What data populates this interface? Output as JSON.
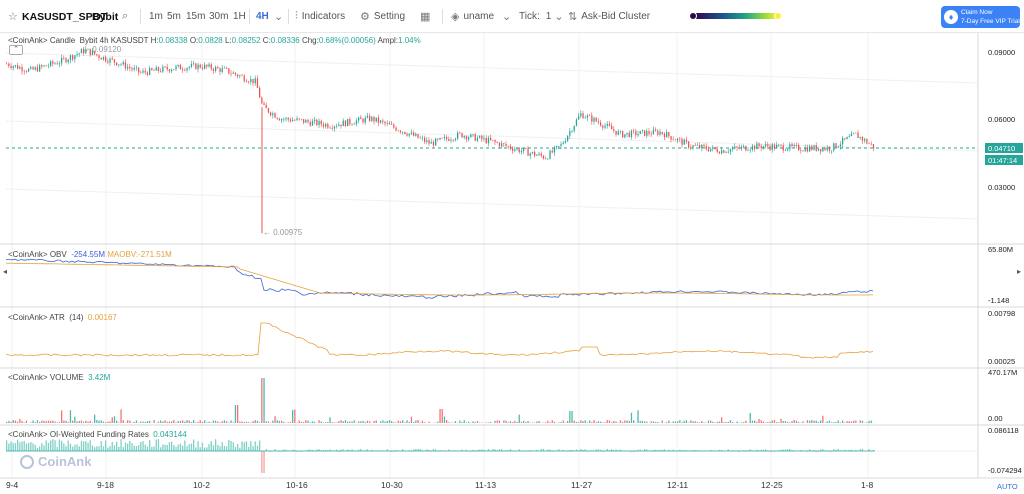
{
  "toolbar": {
    "symbol": "KASUSDT_SPOT",
    "exchange": "Bybit",
    "timeframes": [
      "1m",
      "5m",
      "15m",
      "30m",
      "1H",
      "4H"
    ],
    "active_timeframe": "4H",
    "indicators_label": "Indicators",
    "setting_label": "Setting",
    "uname_label": "uname",
    "tick_label": "Tick:",
    "tick_value": "1",
    "cluster_label": "Ask-Bid Cluster",
    "claim_line1": "Claim Now",
    "claim_line2": "7-Day Free VIP Trial"
  },
  "candle_panel": {
    "source": "<CoinAnk>",
    "type_label": "Candle",
    "info": "Bybit 4h KASUSDT",
    "h_label": "H:",
    "h": "0.08338",
    "o_label": "O:",
    "o": "0.0828",
    "l_label": "L:",
    "l": "0.08252",
    "c_label": "C:",
    "c": "0.08336",
    "chg_label": "Chg:",
    "chg": "0.68%(0.00056)",
    "ampl_label": "Ampl:",
    "ampl": "1.04%",
    "high_marker": "0.09120",
    "low_marker": "0.00975",
    "y_ticks": [
      "0.09000",
      "0.06000",
      "0.03000"
    ],
    "last_price": "0.04710",
    "countdown": "01:47:14"
  },
  "obv_panel": {
    "source": "<CoinAnk>",
    "name": "OBV",
    "value": "-254.55M",
    "ma_label": "MAOBV:",
    "ma_value": "-271.51M",
    "y_top": "65.80M",
    "y_bottom": "-1.148"
  },
  "atr_panel": {
    "source": "<CoinAnk>",
    "name": "ATR",
    "param": "(14)",
    "value": "0.00167",
    "y_top": "0.00798",
    "y_bottom": "0.00025"
  },
  "volume_panel": {
    "source": "<CoinAnk>",
    "name": "VOLUME",
    "value": "3.42M",
    "y_top": "470.17M",
    "y_bottom": "0.00"
  },
  "funding_panel": {
    "source": "<CoinAnk>",
    "name": "OI-Weighted Funding Rates",
    "value": "0.043144",
    "y_top": "0.086118",
    "y_bottom": "-0.074294"
  },
  "x_axis": {
    "dates": [
      "9-4",
      "9-18",
      "10-2",
      "10-16",
      "10-30",
      "11-13",
      "11-27",
      "12-11",
      "12-25",
      "1-8"
    ],
    "auto_label": "AUTO"
  },
  "watermark": "CoinAnk",
  "colors": {
    "up": "#26a69a",
    "down": "#ef5350",
    "obv": "#3b63d6",
    "maobv": "#e6a23c",
    "atr": "#e6a23c",
    "accent": "#3b82f6"
  },
  "chart_data": {
    "type": "candlestick",
    "x_dates": [
      "9-4",
      "9-18",
      "10-2",
      "10-16",
      "10-30",
      "11-13",
      "11-27",
      "12-11",
      "12-25",
      "1-8"
    ],
    "price_close_approx": [
      0.084,
      0.088,
      0.083,
      0.085,
      0.08,
      0.063,
      0.058,
      0.059,
      0.057,
      0.052,
      0.052,
      0.049,
      0.045,
      0.05,
      0.061,
      0.056,
      0.05,
      0.048,
      0.046,
      0.047,
      0.047,
      0.053,
      0.047
    ],
    "ylim": [
      0.0,
      0.1
    ]
  }
}
